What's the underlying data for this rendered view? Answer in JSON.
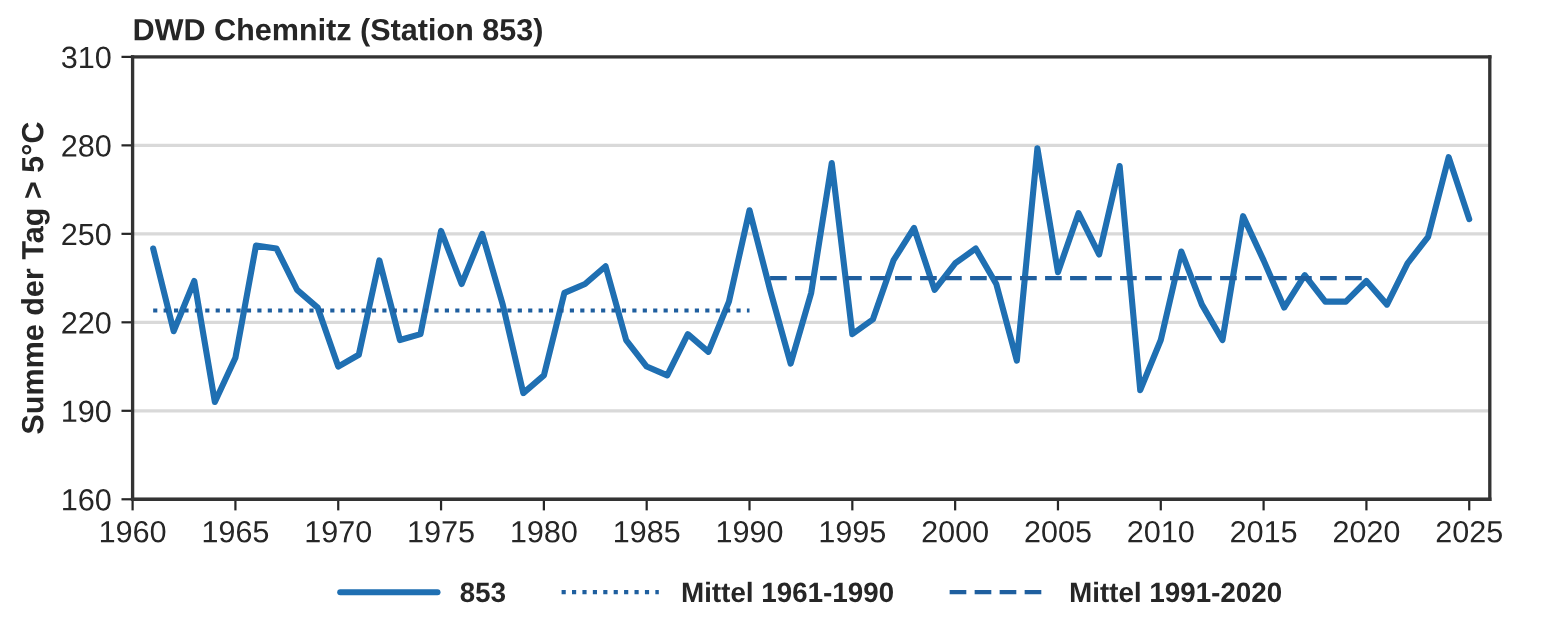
{
  "chart_data": {
    "type": "line",
    "title": "DWD Chemnitz (Station 853)",
    "ylabel": "Summe der Tag > 5°C",
    "xlim": [
      1960,
      2026
    ],
    "xticks": [
      1960,
      1965,
      1970,
      1975,
      1980,
      1985,
      1990,
      1995,
      2000,
      2005,
      2010,
      2015,
      2020,
      2025
    ],
    "ylim": [
      160,
      310
    ],
    "yticks": [
      160,
      190,
      220,
      250,
      280,
      310
    ],
    "grid": "y",
    "legend": "bottom",
    "series": [
      {
        "name": "853",
        "color": "#1f6fb2",
        "line_style": "solid",
        "x": [
          1961,
          1962,
          1963,
          1964,
          1965,
          1966,
          1967,
          1968,
          1969,
          1970,
          1971,
          1972,
          1973,
          1974,
          1975,
          1976,
          1977,
          1978,
          1979,
          1980,
          1981,
          1982,
          1983,
          1984,
          1985,
          1986,
          1987,
          1988,
          1989,
          1990,
          1991,
          1992,
          1993,
          1994,
          1995,
          1996,
          1997,
          1998,
          1999,
          2000,
          2001,
          2002,
          2003,
          2004,
          2005,
          2006,
          2007,
          2008,
          2009,
          2010,
          2011,
          2012,
          2013,
          2014,
          2015,
          2016,
          2017,
          2018,
          2019,
          2020,
          2021,
          2022,
          2023,
          2024,
          2025
        ],
        "values": [
          245,
          217,
          234,
          193,
          208,
          246,
          245,
          231,
          225,
          205,
          209,
          241,
          214,
          216,
          251,
          233,
          250,
          226,
          196,
          202,
          230,
          233,
          239,
          214,
          205,
          202,
          216,
          210,
          227,
          258,
          231,
          206,
          230,
          274,
          216,
          221,
          241,
          252,
          231,
          240,
          245,
          233,
          207,
          279,
          237,
          257,
          243,
          273,
          197,
          214,
          244,
          226,
          214,
          256,
          241,
          225,
          236,
          227,
          227,
          234,
          226,
          240,
          249,
          276,
          255
        ]
      },
      {
        "name": "Mittel 1961-1990",
        "color": "#1f5f9f",
        "line_style": "dotted",
        "x": [
          1961,
          1990
        ],
        "values": [
          224,
          224
        ]
      },
      {
        "name": "Mittel 1991-2020",
        "color": "#1f5f9f",
        "line_style": "dashed",
        "x": [
          1991,
          2020
        ],
        "values": [
          235,
          235
        ]
      }
    ]
  }
}
